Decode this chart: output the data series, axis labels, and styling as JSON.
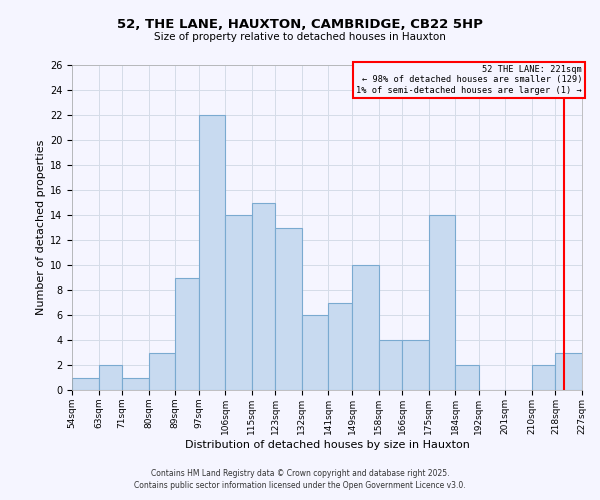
{
  "title": "52, THE LANE, HAUXTON, CAMBRIDGE, CB22 5HP",
  "subtitle": "Size of property relative to detached houses in Hauxton",
  "xlabel": "Distribution of detached houses by size in Hauxton",
  "ylabel": "Number of detached properties",
  "bin_edges": [
    54,
    63,
    71,
    80,
    89,
    97,
    106,
    115,
    123,
    132,
    141,
    149,
    158,
    166,
    175,
    184,
    192,
    201,
    210,
    218,
    227
  ],
  "counts": [
    1,
    2,
    1,
    3,
    9,
    22,
    14,
    15,
    13,
    6,
    7,
    10,
    4,
    4,
    14,
    2,
    0,
    0,
    2,
    3
  ],
  "bar_color": "#c8daf0",
  "bar_edge_color": "#7aaad0",
  "vertical_line_x": 221,
  "vertical_line_color": "red",
  "annotation_text": "52 THE LANE: 221sqm\n← 98% of detached houses are smaller (129)\n1% of semi-detached houses are larger (1) →",
  "annotation_box_color": "red",
  "ylim": [
    0,
    26
  ],
  "yticks": [
    0,
    2,
    4,
    6,
    8,
    10,
    12,
    14,
    16,
    18,
    20,
    22,
    24,
    26
  ],
  "footnote1": "Contains HM Land Registry data © Crown copyright and database right 2025.",
  "footnote2": "Contains public sector information licensed under the Open Government Licence v3.0.",
  "grid_color": "#d4dce8",
  "background_color": "#f5f5ff"
}
